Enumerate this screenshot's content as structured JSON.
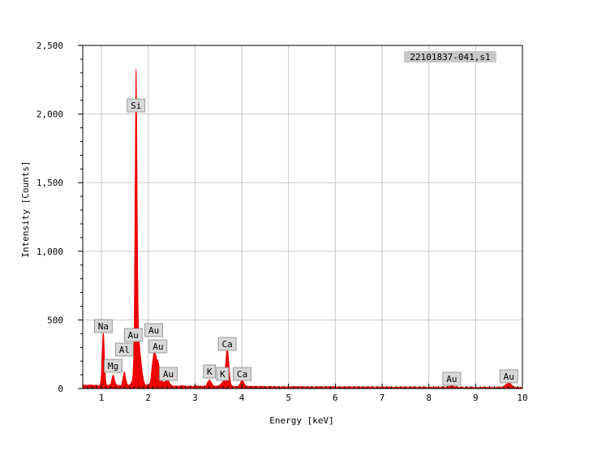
{
  "chart_data": {
    "type": "area",
    "title": "",
    "sample_label": "22101837-041,s1",
    "xlabel": "Energy [keV]",
    "ylabel": "Intensity [Counts]",
    "xlim": [
      0.6,
      10
    ],
    "ylim": [
      0,
      2500
    ],
    "x_ticks": [
      "1",
      "2",
      "3",
      "4",
      "5",
      "6",
      "7",
      "8",
      "9",
      "10"
    ],
    "y_ticks": [
      "0",
      "500",
      "1,000",
      "1,500",
      "2,000",
      "2,500"
    ],
    "grid": true,
    "series_color": "#ee0000",
    "baseline": 20,
    "peaks": [
      {
        "x": 1.04,
        "y": 390,
        "w": 0.025
      },
      {
        "x": 1.25,
        "y": 75,
        "w": 0.03
      },
      {
        "x": 1.49,
        "y": 95,
        "w": 0.03
      },
      {
        "x": 1.74,
        "y": 2030,
        "w": 0.022
      },
      {
        "x": 1.78,
        "y": 350,
        "w": 0.06
      },
      {
        "x": 2.12,
        "y": 215,
        "w": 0.04
      },
      {
        "x": 2.21,
        "y": 160,
        "w": 0.05
      },
      {
        "x": 2.4,
        "y": 45,
        "w": 0.05
      },
      {
        "x": 3.31,
        "y": 45,
        "w": 0.04
      },
      {
        "x": 3.59,
        "y": 25,
        "w": 0.04
      },
      {
        "x": 3.69,
        "y": 280,
        "w": 0.035
      },
      {
        "x": 4.01,
        "y": 45,
        "w": 0.04
      },
      {
        "x": 8.49,
        "y": 10,
        "w": 0.06
      },
      {
        "x": 9.71,
        "y": 35,
        "w": 0.06
      }
    ],
    "annotations": [
      {
        "label": "Na",
        "x": 1.04
      },
      {
        "label": "Mg",
        "x": 1.25
      },
      {
        "label": "Al",
        "x": 1.49
      },
      {
        "label": "Au",
        "x": 1.68
      },
      {
        "label": "Si",
        "x": 1.74
      },
      {
        "label": "Au",
        "x": 2.12
      },
      {
        "label": "Au",
        "x": 2.21
      },
      {
        "label": "Au",
        "x": 2.43
      },
      {
        "label": "K",
        "x": 3.31
      },
      {
        "label": "K",
        "x": 3.59
      },
      {
        "label": "Ca",
        "x": 3.69
      },
      {
        "label": "Ca",
        "x": 4.01
      },
      {
        "label": "Au",
        "x": 8.49
      },
      {
        "label": "Au",
        "x": 9.71
      }
    ]
  }
}
